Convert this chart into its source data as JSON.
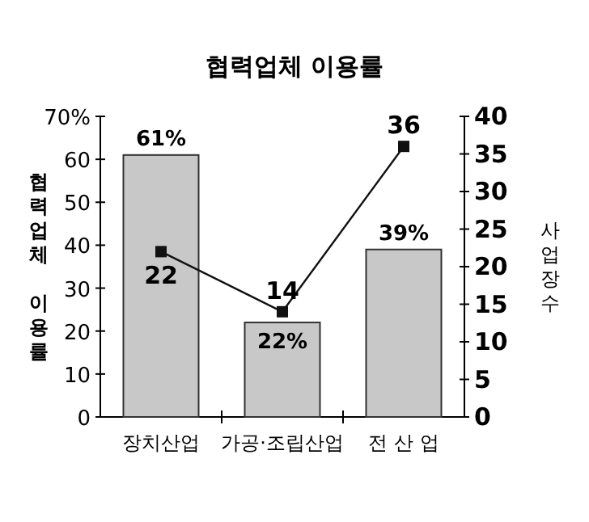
{
  "chart_data": {
    "type": "bar",
    "title": "협력업체 이용률",
    "ylabel": "협력업체 이용률",
    "y2label": "사업장수",
    "categories": [
      "장치산업",
      "가공·조립산업",
      "전 산 업"
    ],
    "series": [
      {
        "color": "#c8c8c8",
        "values": [
          61,
          22,
          39
        ],
        "value_labels": [
          "61%",
          "22%",
          "39%"
        ]
      },
      {
        "type": "line",
        "axis": "y2",
        "color": "#111111",
        "marker": "square",
        "values": [
          22,
          14,
          36
        ],
        "value_labels": [
          "22",
          "14",
          "36"
        ]
      }
    ],
    "ylim": [
      0,
      70
    ],
    "yticks": [
      0,
      10,
      20,
      30,
      40,
      50,
      60,
      {
        "value": 70,
        "label": "70%"
      }
    ],
    "y2lim": [
      0,
      40
    ],
    "y2ticks": [
      0,
      5,
      10,
      15,
      20,
      25,
      30,
      35,
      40
    ],
    "grid": false
  }
}
